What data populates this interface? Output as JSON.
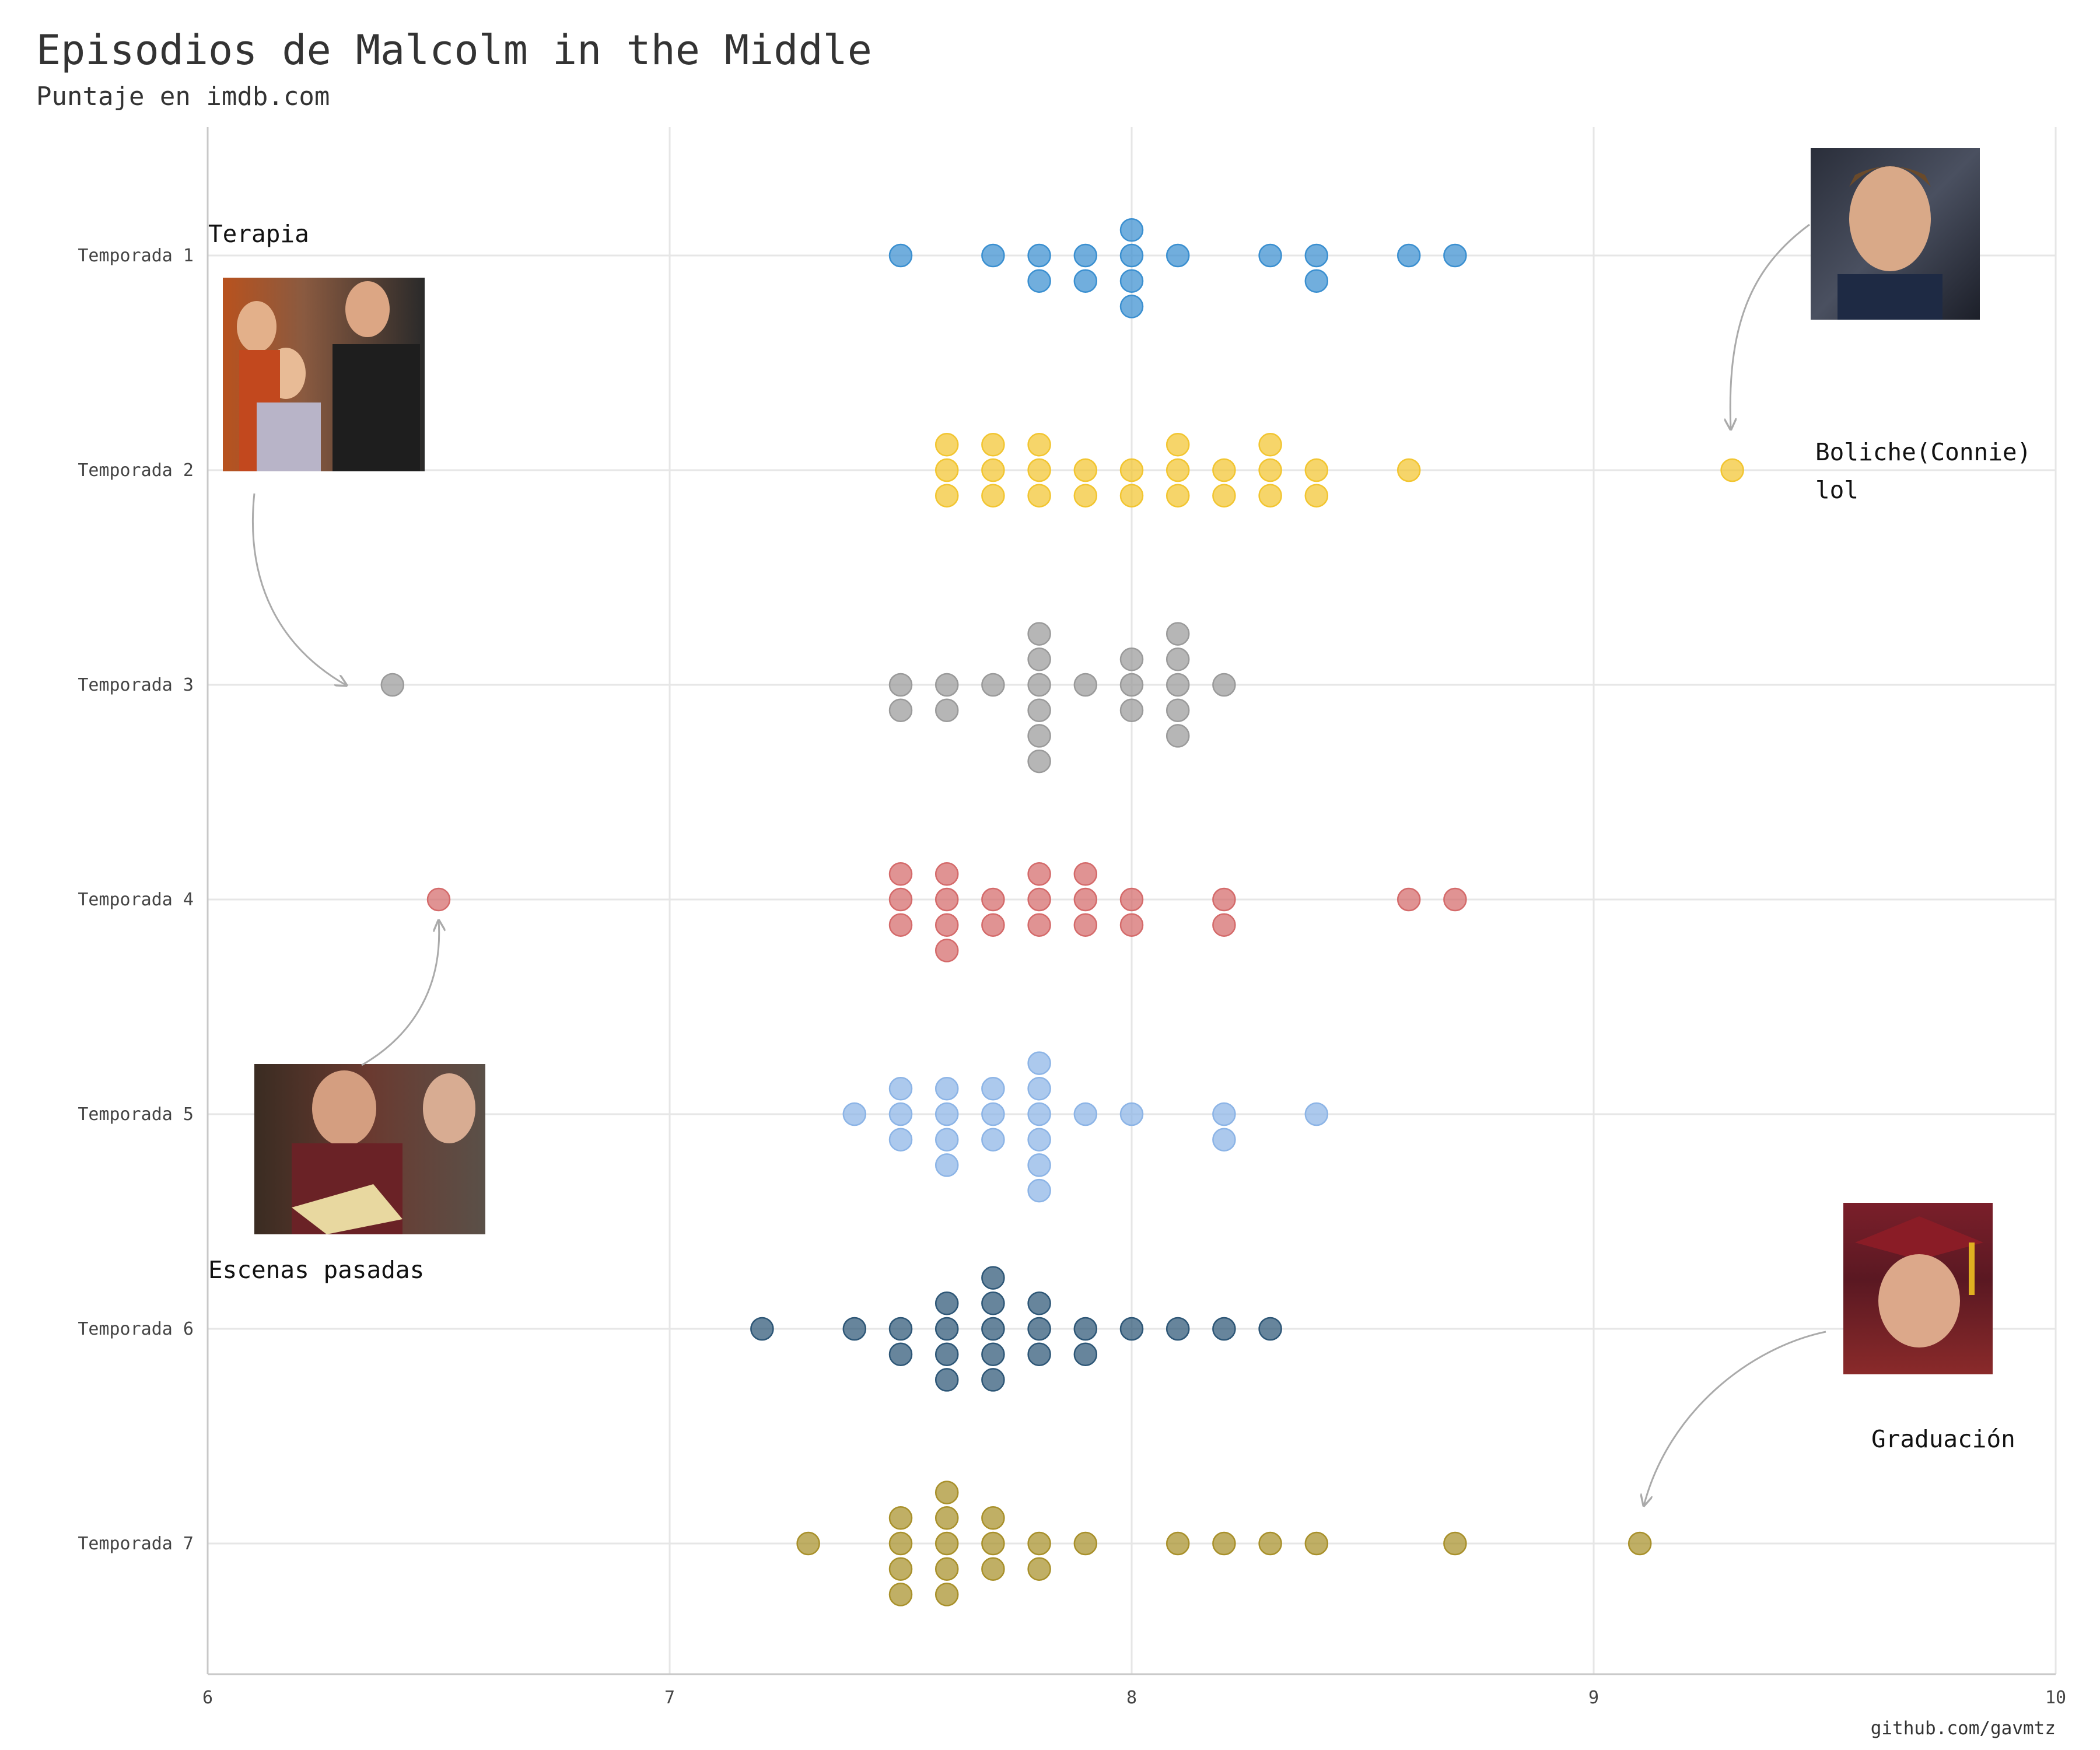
{
  "chart_data": {
    "type": "scatter",
    "title": "Episodios de Malcolm in the Middle",
    "subtitle": "Puntaje en imdb.com",
    "xlabel": "",
    "ylabel": "",
    "xlim": [
      6,
      10
    ],
    "x_ticks": [
      "6",
      "7",
      "8",
      "9",
      "10"
    ],
    "categories": [
      "Temporada 1",
      "Temporada 2",
      "Temporada 3",
      "Temporada 4",
      "Temporada 5",
      "Temporada 6",
      "Temporada 7"
    ],
    "grid": true,
    "legend": "none",
    "credit": "github.com/gavmtz",
    "series": [
      {
        "color": "#3a8fd0",
        "values": [
          7.5,
          7.7,
          7.8,
          7.8,
          7.9,
          7.9,
          8.0,
          8.0,
          8.0,
          8.0,
          8.1,
          8.3,
          8.4,
          8.4,
          8.6,
          8.7
        ]
      },
      {
        "color": "#f2c530",
        "values": [
          7.6,
          7.6,
          7.6,
          7.7,
          7.7,
          7.7,
          7.8,
          7.8,
          7.8,
          7.9,
          7.9,
          8.0,
          8.0,
          8.1,
          8.1,
          8.1,
          8.2,
          8.2,
          8.3,
          8.3,
          8.3,
          8.4,
          8.4,
          8.6,
          9.3
        ]
      },
      {
        "color": "#9a9a9a",
        "values": [
          6.4,
          7.5,
          7.5,
          7.6,
          7.6,
          7.7,
          7.8,
          7.8,
          7.8,
          7.8,
          7.8,
          7.8,
          7.9,
          8.0,
          8.0,
          8.0,
          8.1,
          8.1,
          8.1,
          8.1,
          8.1,
          8.2
        ]
      },
      {
        "color": "#d46a6a",
        "values": [
          6.5,
          7.5,
          7.5,
          7.5,
          7.6,
          7.6,
          7.6,
          7.6,
          7.7,
          7.7,
          7.8,
          7.8,
          7.8,
          7.9,
          7.9,
          7.9,
          8.0,
          8.0,
          8.2,
          8.2,
          8.6,
          8.7
        ]
      },
      {
        "color": "#8cb4e6",
        "values": [
          7.4,
          7.5,
          7.5,
          7.5,
          7.6,
          7.6,
          7.6,
          7.6,
          7.7,
          7.7,
          7.7,
          7.8,
          7.8,
          7.8,
          7.8,
          7.8,
          7.8,
          7.9,
          8.0,
          8.2,
          8.2,
          8.4
        ]
      },
      {
        "color": "#2d5676",
        "values": [
          7.2,
          7.4,
          7.5,
          7.5,
          7.6,
          7.6,
          7.6,
          7.6,
          7.7,
          7.7,
          7.7,
          7.7,
          7.7,
          7.8,
          7.8,
          7.8,
          7.9,
          7.9,
          8.0,
          8.1,
          8.2,
          8.3
        ]
      },
      {
        "color": "#a8902a",
        "values": [
          7.3,
          7.5,
          7.5,
          7.5,
          7.5,
          7.6,
          7.6,
          7.6,
          7.6,
          7.6,
          7.7,
          7.7,
          7.7,
          7.8,
          7.8,
          7.9,
          8.1,
          8.2,
          8.3,
          8.4,
          8.7,
          9.1
        ]
      }
    ],
    "annotations": [
      {
        "text": "Terapia",
        "season": "Temporada 3",
        "x": 6.4
      },
      {
        "text": "Boliche(Connie)",
        "text2": "lol",
        "season": "Temporada 2",
        "x": 9.3
      },
      {
        "text": "Escenas pasadas",
        "season": "Temporada 4",
        "x": 6.5
      },
      {
        "text": "Graduación",
        "season": "Temporada 7",
        "x": 9.1
      }
    ]
  }
}
